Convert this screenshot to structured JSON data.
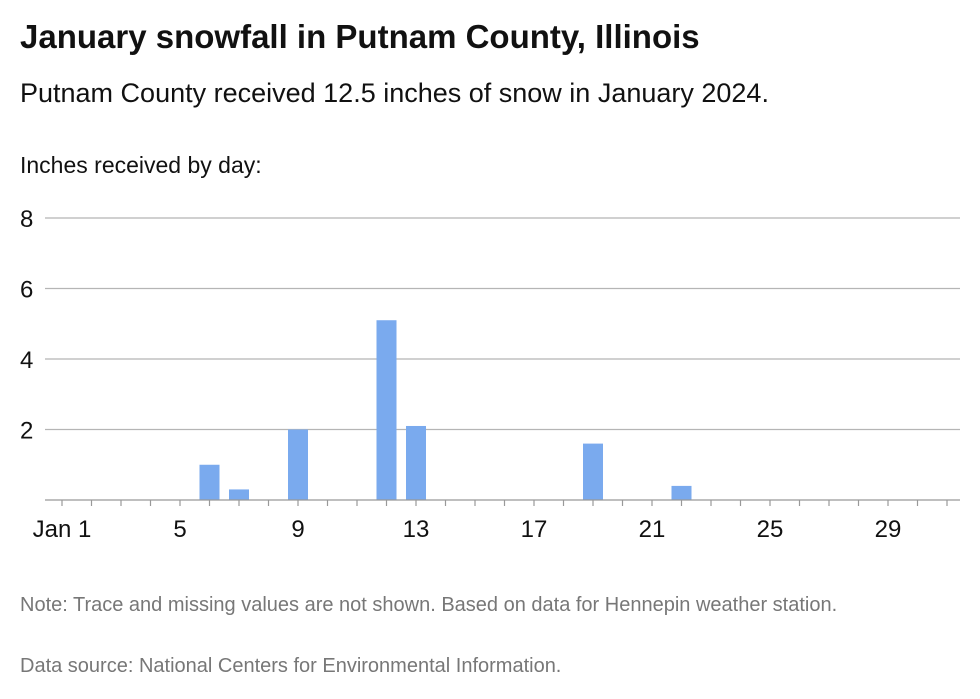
{
  "header": {
    "title": "January snowfall in Putnam County, Illinois",
    "subtitle": "Putnam County received 12.5 inches of snow in January 2024."
  },
  "footer": {
    "note": "Note: Trace and missing values are not shown. Based on data for Hennepin weather station.",
    "source": "Data source: National Centers for Environmental Information."
  },
  "chart_data": {
    "type": "bar",
    "title": "January snowfall in Putnam County, Illinois",
    "subtitle": "Putnam County received 12.5 inches of snow in January 2024.",
    "ylabel": "Inches received by day:",
    "xlabel": "",
    "ylim": [
      0,
      8
    ],
    "yticks": [
      2,
      4,
      6,
      8
    ],
    "xlim": [
      1,
      31
    ],
    "xticks": [
      1,
      5,
      9,
      13,
      17,
      21,
      25,
      29
    ],
    "xtick_labels": [
      "Jan 1",
      "5",
      "9",
      "13",
      "17",
      "21",
      "25",
      "29"
    ],
    "grid": true,
    "bar_color": "#7aaaee",
    "x": [
      6,
      7,
      9,
      12,
      13,
      19,
      22
    ],
    "values": [
      1.0,
      0.3,
      2.0,
      5.1,
      2.1,
      1.6,
      0.4
    ]
  }
}
